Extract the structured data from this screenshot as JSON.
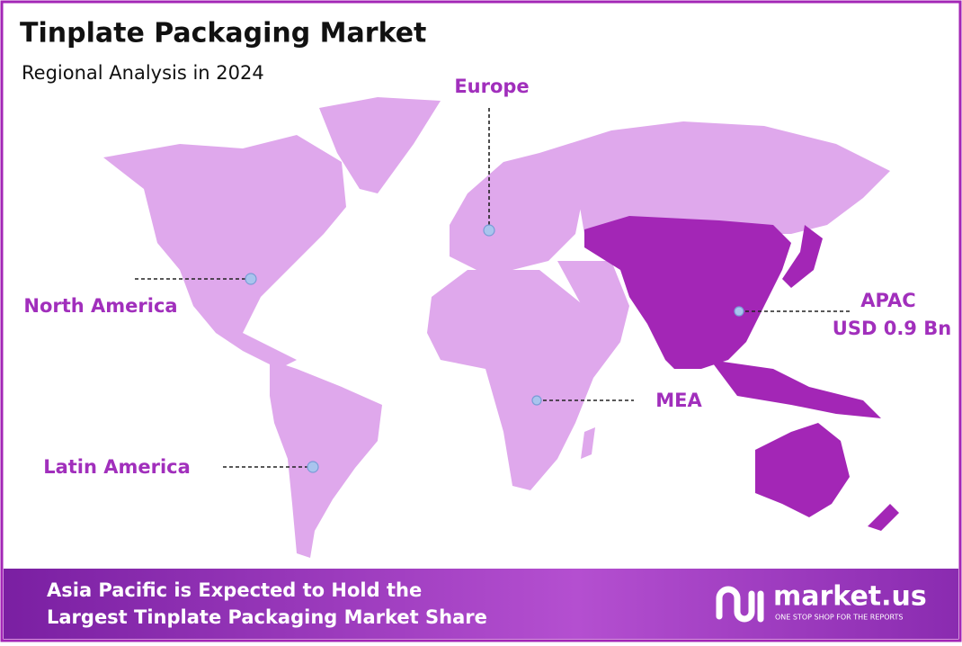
{
  "header": {
    "title": "Tinplate Packaging Market",
    "subtitle": "Regional Analysis in 2024"
  },
  "regions": [
    {
      "label": "Europe"
    },
    {
      "label": "North America"
    },
    {
      "label": "Latin America"
    },
    {
      "label": "MEA"
    },
    {
      "label": "APAC",
      "value": "USD 0.9 Bn"
    }
  ],
  "footer": {
    "lines": [
      "Asia Pacific is Expected to Hold the",
      "Largest Tinplate Packaging Market Share"
    ]
  },
  "logo": {
    "name": "market.us",
    "tagline": "ONE STOP SHOP FOR THE REPORTS"
  }
}
